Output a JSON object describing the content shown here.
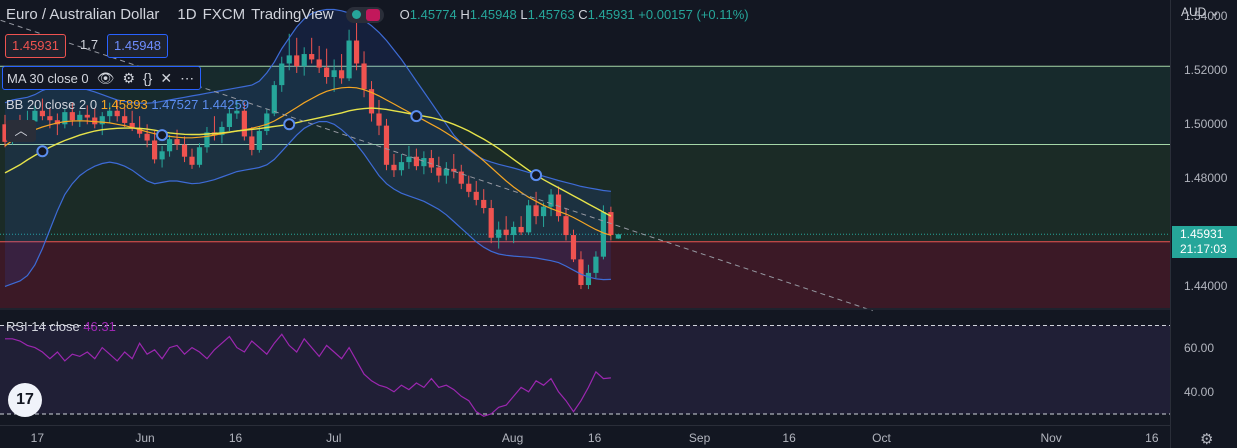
{
  "header": {
    "symbol": "Euro / Australian Dollar",
    "interval": "1D",
    "exchange": "FXCM",
    "platform": "TradingView",
    "ohlc": {
      "o_label": "O",
      "o": "1.45774",
      "h_label": "H",
      "h": "1.45948",
      "l_label": "L",
      "l": "1.45763",
      "c_label": "C",
      "c": "1.45931",
      "change": "+0.00157 (+0.11%)"
    }
  },
  "trade": {
    "sell": "1.45931",
    "spread": "1.7",
    "buy": "1.45948"
  },
  "indicators": {
    "ma": {
      "label": "MA 30 close 0",
      "icons": [
        "eye-icon",
        "gear-icon",
        "braces-icon",
        "close-icon",
        "more-icon"
      ]
    },
    "bb": {
      "label": "BB 20 close 2 0",
      "basis": "1.45893",
      "upper": "1.47527",
      "lower": "1.44259"
    },
    "rsi": {
      "label": "RSI 14 close",
      "value": "46.31"
    }
  },
  "price_axis": {
    "currency": "AUD",
    "ticks": [
      "1.54000",
      "1.52000",
      "1.50000",
      "1.48000",
      "1.44000"
    ],
    "last_price": "1.45931",
    "countdown": "21:17:03"
  },
  "rsi_axis": {
    "ticks": [
      "60.00",
      "40.00"
    ]
  },
  "time_axis": {
    "ticks": [
      "17",
      "Jun",
      "16",
      "Jul",
      "Aug",
      "16",
      "Sep",
      "16",
      "Oct",
      "Nov",
      "16"
    ]
  },
  "colors": {
    "up": "#26a69a",
    "down": "#ef5350",
    "ma": "#e6e34a",
    "bb_basis": "#f5a623",
    "bb_band": "#3d6bd6",
    "rsi": "#9c27b0",
    "bg": "#131722"
  },
  "chart_data": {
    "type": "candlestick",
    "ylim": [
      1.432,
      1.546
    ],
    "rsi_ylim": [
      25,
      77
    ],
    "candles": [
      [
        1.5,
        1.5035,
        1.4915,
        1.4935
      ],
      [
        1.4935,
        1.501,
        1.4925,
        1.4995
      ],
      [
        1.4995,
        1.5035,
        1.496,
        1.4985
      ],
      [
        1.4985,
        1.505,
        1.497,
        1.501
      ],
      [
        1.501,
        1.507,
        1.4985,
        1.505
      ],
      [
        1.505,
        1.5095,
        1.5015,
        1.503
      ],
      [
        1.503,
        1.506,
        1.4985,
        1.5015
      ],
      [
        1.5015,
        1.504,
        1.496,
        1.5
      ],
      [
        1.5,
        1.506,
        1.4985,
        1.5045
      ],
      [
        1.5045,
        1.508,
        1.4995,
        1.5015
      ],
      [
        1.5015,
        1.505,
        1.499,
        1.5035
      ],
      [
        1.5035,
        1.507,
        1.5,
        1.5025
      ],
      [
        1.5025,
        1.506,
        1.4985,
        1.5
      ],
      [
        1.5,
        1.5045,
        1.496,
        1.503
      ],
      [
        1.503,
        1.508,
        1.5005,
        1.505
      ],
      [
        1.505,
        1.509,
        1.501,
        1.503
      ],
      [
        1.503,
        1.506,
        1.499,
        1.5005
      ],
      [
        1.5005,
        1.505,
        1.4975,
        1.4985
      ],
      [
        1.4985,
        1.503,
        1.495,
        1.4965
      ],
      [
        1.4965,
        1.5,
        1.4915,
        1.494
      ],
      [
        1.494,
        1.4975,
        1.4855,
        1.487
      ],
      [
        1.487,
        1.492,
        1.484,
        1.49
      ],
      [
        1.49,
        1.496,
        1.488,
        1.4945
      ],
      [
        1.4945,
        1.498,
        1.4905,
        1.4925
      ],
      [
        1.4925,
        1.4955,
        1.486,
        1.488
      ],
      [
        1.488,
        1.491,
        1.4835,
        1.485
      ],
      [
        1.485,
        1.493,
        1.484,
        1.4915
      ],
      [
        1.4915,
        1.499,
        1.4895,
        1.497
      ],
      [
        1.497,
        1.503,
        1.494,
        1.496
      ],
      [
        1.496,
        1.501,
        1.493,
        1.499
      ],
      [
        1.499,
        1.506,
        1.4975,
        1.504
      ],
      [
        1.504,
        1.509,
        1.502,
        1.505
      ],
      [
        1.505,
        1.508,
        1.494,
        1.4955
      ],
      [
        1.4955,
        1.499,
        1.4885,
        1.4905
      ],
      [
        1.4905,
        1.499,
        1.4895,
        1.4975
      ],
      [
        1.4975,
        1.5055,
        1.496,
        1.504
      ],
      [
        1.504,
        1.516,
        1.503,
        1.5145
      ],
      [
        1.5145,
        1.525,
        1.512,
        1.5225
      ],
      [
        1.5225,
        1.5335,
        1.52,
        1.5255
      ],
      [
        1.5255,
        1.532,
        1.519,
        1.5215
      ],
      [
        1.5215,
        1.5285,
        1.518,
        1.526
      ],
      [
        1.526,
        1.532,
        1.5225,
        1.524
      ],
      [
        1.524,
        1.529,
        1.519,
        1.521
      ],
      [
        1.521,
        1.528,
        1.515,
        1.5175
      ],
      [
        1.5175,
        1.524,
        1.512,
        1.52
      ],
      [
        1.52,
        1.526,
        1.515,
        1.517
      ],
      [
        1.517,
        1.535,
        1.516,
        1.531
      ],
      [
        1.531,
        1.5385,
        1.52,
        1.5225
      ],
      [
        1.5225,
        1.527,
        1.51,
        1.513
      ],
      [
        1.513,
        1.516,
        1.501,
        1.504
      ],
      [
        1.504,
        1.509,
        1.496,
        1.4995
      ],
      [
        1.4995,
        1.502,
        1.483,
        1.485
      ],
      [
        1.485,
        1.489,
        1.4805,
        1.483
      ],
      [
        1.483,
        1.489,
        1.481,
        1.486
      ],
      [
        1.486,
        1.492,
        1.4835,
        1.488
      ],
      [
        1.488,
        1.491,
        1.483,
        1.4845
      ],
      [
        1.4845,
        1.49,
        1.4815,
        1.4875
      ],
      [
        1.4875,
        1.4905,
        1.482,
        1.484
      ],
      [
        1.484,
        1.488,
        1.4785,
        1.481
      ],
      [
        1.481,
        1.486,
        1.478,
        1.4835
      ],
      [
        1.4835,
        1.489,
        1.48,
        1.4825
      ],
      [
        1.4825,
        1.485,
        1.476,
        1.478
      ],
      [
        1.478,
        1.481,
        1.473,
        1.475
      ],
      [
        1.475,
        1.479,
        1.47,
        1.472
      ],
      [
        1.472,
        1.476,
        1.467,
        1.469
      ],
      [
        1.469,
        1.472,
        1.456,
        1.458
      ],
      [
        1.458,
        1.464,
        1.454,
        1.461
      ],
      [
        1.461,
        1.466,
        1.457,
        1.459
      ],
      [
        1.459,
        1.464,
        1.456,
        1.462
      ],
      [
        1.462,
        1.466,
        1.459,
        1.46
      ],
      [
        1.46,
        1.472,
        1.459,
        1.47
      ],
      [
        1.47,
        1.475,
        1.463,
        1.466
      ],
      [
        1.466,
        1.471,
        1.462,
        1.4695
      ],
      [
        1.4695,
        1.476,
        1.466,
        1.474
      ],
      [
        1.474,
        1.477,
        1.464,
        1.466
      ],
      [
        1.466,
        1.469,
        1.457,
        1.459
      ],
      [
        1.459,
        1.461,
        1.449,
        1.45
      ],
      [
        1.45,
        1.453,
        1.439,
        1.4405
      ],
      [
        1.4405,
        1.448,
        1.439,
        1.445
      ],
      [
        1.445,
        1.453,
        1.443,
        1.451
      ],
      [
        1.451,
        1.47,
        1.45,
        1.4675
      ],
      [
        1.4675,
        1.4695,
        1.457,
        1.459
      ],
      [
        1.4577,
        1.4595,
        1.4576,
        1.4593
      ]
    ],
    "ma30": [
      1.482,
      1.4835,
      1.485,
      1.4868,
      1.4885,
      1.49,
      1.4915,
      1.4928,
      1.494,
      1.495,
      1.496,
      1.4968,
      1.4975,
      1.498,
      1.4983,
      1.4985,
      1.4986,
      1.4986,
      1.4985,
      1.4982,
      1.4978,
      1.4973,
      1.4968,
      1.4965,
      1.4963,
      1.4962,
      1.4962,
      1.4964,
      1.4966,
      1.4968,
      1.4971,
      1.4975,
      1.4978,
      1.4981,
      1.4984,
      1.4988,
      1.4992,
      1.4996,
      1.5,
      1.5006,
      1.5012,
      1.5018,
      1.5024,
      1.503,
      1.5036,
      1.5042,
      1.505,
      1.5055,
      1.5058,
      1.506,
      1.5058,
      1.5055,
      1.505,
      1.5045,
      1.504,
      1.5035,
      1.503,
      1.5025,
      1.5018,
      1.501,
      1.5,
      1.4988,
      1.4975,
      1.496,
      1.4945,
      1.4928,
      1.491,
      1.489,
      1.487,
      1.485,
      1.483,
      1.4812,
      1.4795,
      1.478,
      1.4765,
      1.475,
      1.4735,
      1.472,
      1.4705,
      1.469,
      1.4675,
      1.466
    ],
    "bb_basis": [
      1.492,
      1.494,
      1.4955,
      1.4968,
      1.498,
      1.499,
      1.4998,
      1.5005,
      1.501,
      1.5012,
      1.5013,
      1.5012,
      1.501,
      1.5008,
      1.5005,
      1.5,
      1.4995,
      1.4988,
      1.498,
      1.4972,
      1.4965,
      1.496,
      1.4955,
      1.4952,
      1.495,
      1.495,
      1.4952,
      1.4955,
      1.496,
      1.4965,
      1.497,
      1.4975,
      1.498,
      1.4985,
      1.4992,
      1.5,
      1.5012,
      1.5028,
      1.5045,
      1.5062,
      1.508,
      1.5095,
      1.511,
      1.5122,
      1.513,
      1.5135,
      1.5137,
      1.5135,
      1.5128,
      1.5118,
      1.5105,
      1.509,
      1.5075,
      1.506,
      1.5045,
      1.503,
      1.5015,
      1.5,
      1.4985,
      1.4968,
      1.495,
      1.493,
      1.491,
      1.4888,
      1.4865,
      1.484,
      1.4815,
      1.479,
      1.4768,
      1.4748,
      1.473,
      1.4715,
      1.47,
      1.4688,
      1.4678,
      1.4668,
      1.4655,
      1.464,
      1.4625,
      1.461,
      1.4598,
      1.4589
    ],
    "bb_upper": [
      1.508,
      1.509,
      1.5095,
      1.51,
      1.511,
      1.5125,
      1.5135,
      1.514,
      1.5142,
      1.514,
      1.5135,
      1.5128,
      1.512,
      1.511,
      1.51,
      1.509,
      1.5085,
      1.508,
      1.5078,
      1.5078,
      1.508,
      1.5085,
      1.509,
      1.5095,
      1.51,
      1.5105,
      1.511,
      1.5115,
      1.512,
      1.5125,
      1.513,
      1.5135,
      1.514,
      1.5145,
      1.516,
      1.519,
      1.523,
      1.528,
      1.532,
      1.536,
      1.539,
      1.541,
      1.542,
      1.5425,
      1.5425,
      1.542,
      1.5412,
      1.54,
      1.5385,
      1.5365,
      1.534,
      1.531,
      1.5275,
      1.524,
      1.52,
      1.516,
      1.512,
      1.508,
      1.504,
      1.5,
      1.496,
      1.493,
      1.4905,
      1.4885,
      1.487,
      1.486,
      1.4852,
      1.4845,
      1.4838,
      1.483,
      1.4822,
      1.4815,
      1.4808,
      1.48,
      1.4792,
      1.4785,
      1.4778,
      1.477,
      1.4765,
      1.476,
      1.4755,
      1.4752
    ],
    "bb_lower": [
      1.44,
      1.441,
      1.442,
      1.444,
      1.448,
      1.454,
      1.461,
      1.468,
      1.474,
      1.478,
      1.481,
      1.483,
      1.4845,
      1.4855,
      1.486,
      1.4855,
      1.4845,
      1.483,
      1.481,
      1.479,
      1.478,
      1.4785,
      1.479,
      1.479,
      1.4785,
      1.478,
      1.4782,
      1.4788,
      1.4795,
      1.4805,
      1.4815,
      1.4825,
      1.483,
      1.4835,
      1.484,
      1.485,
      1.487,
      1.49,
      1.493,
      1.496,
      1.4985,
      1.5,
      1.501,
      1.501,
      1.5,
      1.498,
      1.4955,
      1.4925,
      1.489,
      1.485,
      1.481,
      1.478,
      1.476,
      1.4745,
      1.4735,
      1.4725,
      1.4715,
      1.47,
      1.4685,
      1.4665,
      1.464,
      1.4615,
      1.459,
      1.4565,
      1.4545,
      1.453,
      1.452,
      1.4515,
      1.4512,
      1.451,
      1.4508,
      1.4505,
      1.45,
      1.4495,
      1.4488,
      1.4475,
      1.446,
      1.4445,
      1.4435,
      1.4428,
      1.4425,
      1.4426
    ],
    "rsi": [
      64,
      64,
      63,
      61,
      60,
      58,
      55,
      58,
      54,
      57,
      56,
      58,
      55,
      60,
      57,
      54,
      58,
      55,
      62,
      57,
      59,
      55,
      60,
      61,
      57,
      60,
      58,
      55,
      59,
      62,
      65,
      60,
      58,
      63,
      60,
      57,
      62,
      66,
      61,
      58,
      64,
      60,
      56,
      61,
      58,
      55,
      60,
      54,
      48,
      45,
      43,
      42,
      40,
      43,
      41,
      44,
      42,
      46,
      42,
      43,
      41,
      38,
      36,
      31,
      29,
      30,
      33,
      34,
      38,
      42,
      40,
      45,
      43,
      46,
      40,
      36,
      31,
      36,
      42,
      49,
      46,
      46.31
    ],
    "trendline": {
      "x0": -12,
      "y0": 1.549,
      "x1": 116,
      "y1": 1.431
    },
    "horizontal_levels": [
      1.5215,
      1.4925,
      1.4565
    ]
  }
}
